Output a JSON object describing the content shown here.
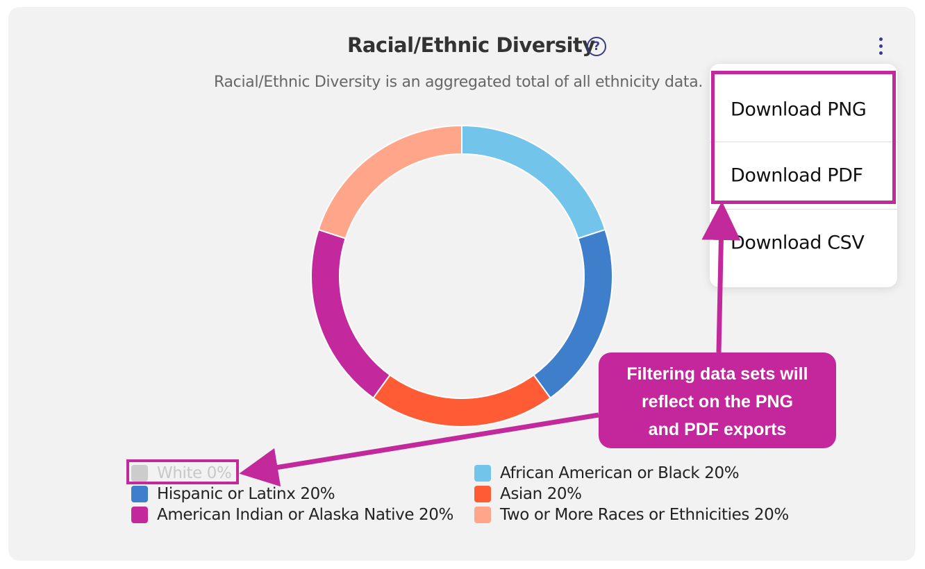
{
  "header": {
    "title": "Racial/Ethnic Diversity",
    "help_icon": "question-circle-icon",
    "menu_icon": "kebab-vertical-icon",
    "subtitle": "Racial/Ethnic Diversity is an aggregated total of all ethnicity data."
  },
  "menu": {
    "items": [
      {
        "label": "Download PNG"
      },
      {
        "label": "Download PDF"
      },
      {
        "label": "Download CSV"
      }
    ]
  },
  "callout": {
    "lines": [
      "Filtering data sets will",
      "reflect on the PNG",
      "and PDF exports"
    ],
    "color": "#c4279c"
  },
  "chart_data": {
    "type": "pie",
    "style": "donut",
    "title": "Racial/Ethnic Diversity",
    "categories": [
      "White",
      "African American or Black",
      "Hispanic or Latinx",
      "Asian",
      "American Indian or Alaska Native",
      "Two or More Races or Ethnicities"
    ],
    "values": [
      0,
      20,
      20,
      20,
      20,
      20
    ],
    "legend_labels": [
      "White 0%",
      "African American or Black 20%",
      "Hispanic or Latinx 20%",
      "Asian 20%",
      "American Indian or Alaska Native 20%",
      "Two or More Races or Ethnicities 20%"
    ],
    "colors": [
      "#cccccc",
      "#72c4ea",
      "#3f7ecb",
      "#ff5c35",
      "#c4289d",
      "#ffa68a"
    ],
    "disabled": [
      "White"
    ],
    "legend_position": "bottom"
  }
}
